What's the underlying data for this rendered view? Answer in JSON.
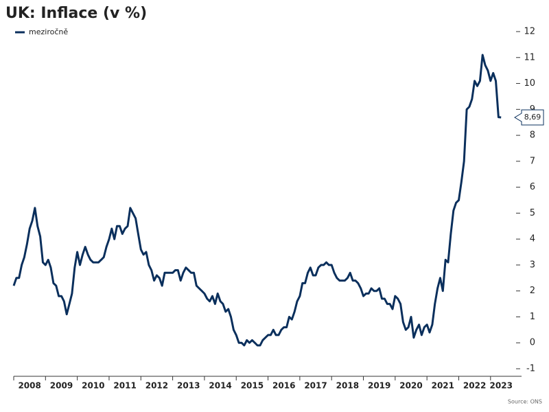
{
  "chart_data": {
    "type": "line",
    "title": "UK: Inflace (v %)",
    "source": "Source: ONS",
    "categories": [
      null,
      null,
      null,
      null,
      null,
      null,
      "2008",
      null,
      null,
      null,
      null,
      null,
      null,
      null,
      null,
      null,
      null,
      null,
      "2009",
      null,
      null,
      null,
      null,
      null,
      null,
      null,
      null,
      null,
      null,
      null,
      "2010",
      null,
      null,
      null,
      null,
      null,
      null,
      null,
      null,
      null,
      null,
      null,
      "2011",
      null,
      null,
      null,
      null,
      null,
      null,
      null,
      null,
      null,
      null,
      null,
      "2012",
      null,
      null,
      null,
      null,
      null,
      null,
      null,
      null,
      null,
      null,
      null,
      "2013",
      null,
      null,
      null,
      null,
      null,
      null,
      null,
      null,
      null,
      null,
      null,
      "2014",
      null,
      null,
      null,
      null,
      null,
      null,
      null,
      null,
      null,
      null,
      null,
      "2015",
      null,
      null,
      null,
      null,
      null,
      null,
      null,
      null,
      null,
      null,
      null,
      "2016",
      null,
      null,
      null,
      null,
      null,
      null,
      null,
      null,
      null,
      null,
      null,
      "2017",
      null,
      null,
      null,
      null,
      null,
      null,
      null,
      null,
      null,
      null,
      null,
      "2018",
      null,
      null,
      null,
      null,
      null,
      null,
      null,
      null,
      null,
      null,
      null,
      "2019",
      null,
      null,
      null,
      null,
      null,
      null,
      null,
      null,
      null,
      null,
      null,
      "2020",
      null,
      null,
      null,
      null,
      null,
      null,
      null,
      null,
      null,
      null,
      null,
      "2021",
      null,
      null,
      null,
      null,
      null,
      null,
      null,
      null,
      null,
      null,
      null,
      "2022",
      null,
      null,
      null,
      null,
      null,
      null,
      null,
      null,
      null,
      "2023"
    ],
    "series": [
      {
        "name": "meziročně",
        "color": "#0a2f5c",
        "last_value_label": "8,69",
        "values": [
          2.2,
          2.5,
          2.5,
          3.0,
          3.3,
          3.8,
          4.4,
          4.7,
          5.2,
          4.5,
          4.1,
          3.1,
          3.0,
          3.2,
          2.9,
          2.3,
          2.2,
          1.8,
          1.8,
          1.6,
          1.1,
          1.5,
          1.9,
          2.9,
          3.5,
          3.0,
          3.4,
          3.7,
          3.4,
          3.2,
          3.1,
          3.1,
          3.1,
          3.2,
          3.3,
          3.7,
          4.0,
          4.4,
          4.0,
          4.5,
          4.5,
          4.2,
          4.4,
          4.5,
          5.2,
          5.0,
          4.8,
          4.2,
          3.6,
          3.4,
          3.5,
          3.0,
          2.8,
          2.4,
          2.6,
          2.5,
          2.2,
          2.7,
          2.7,
          2.7,
          2.7,
          2.8,
          2.8,
          2.4,
          2.7,
          2.9,
          2.8,
          2.7,
          2.7,
          2.2,
          2.1,
          2.0,
          1.9,
          1.7,
          1.6,
          1.8,
          1.5,
          1.9,
          1.6,
          1.5,
          1.2,
          1.3,
          1.0,
          0.5,
          0.3,
          0.0,
          0.0,
          -0.1,
          0.1,
          0.0,
          0.1,
          0.0,
          -0.1,
          -0.1,
          0.1,
          0.2,
          0.3,
          0.3,
          0.5,
          0.3,
          0.3,
          0.5,
          0.6,
          0.6,
          1.0,
          0.9,
          1.2,
          1.6,
          1.8,
          2.3,
          2.3,
          2.7,
          2.9,
          2.6,
          2.6,
          2.9,
          3.0,
          3.0,
          3.1,
          3.0,
          3.0,
          2.7,
          2.5,
          2.4,
          2.4,
          2.4,
          2.5,
          2.7,
          2.4,
          2.4,
          2.3,
          2.1,
          1.8,
          1.9,
          1.9,
          2.1,
          2.0,
          2.0,
          2.1,
          1.7,
          1.7,
          1.5,
          1.5,
          1.3,
          1.8,
          1.7,
          1.5,
          0.8,
          0.5,
          0.6,
          1.0,
          0.2,
          0.5,
          0.7,
          0.3,
          0.6,
          0.7,
          0.4,
          0.7,
          1.5,
          2.1,
          2.5,
          2.0,
          3.2,
          3.1,
          4.2,
          5.1,
          5.4,
          5.5,
          6.2,
          7.0,
          9.0,
          9.1,
          9.4,
          10.1,
          9.9,
          10.1,
          11.1,
          10.7,
          10.5,
          10.1,
          10.4,
          10.1,
          8.7,
          8.69
        ]
      }
    ],
    "ylim": [
      -1,
      12
    ],
    "yticks": [
      -1,
      0,
      1,
      2,
      3,
      4,
      5,
      6,
      7,
      8,
      9,
      10,
      11,
      12
    ],
    "grid": false,
    "legend": "top-left"
  }
}
